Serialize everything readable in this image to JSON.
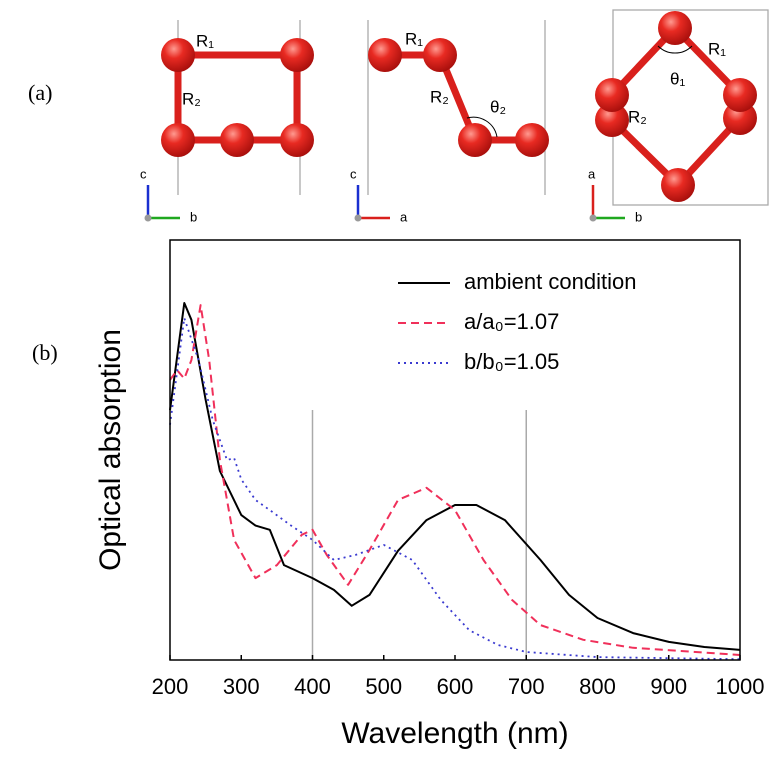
{
  "figure": {
    "panel_labels": [
      "(a)",
      "(b)"
    ],
    "diagram_1": {
      "labels": [
        "R₁",
        "R₂"
      ],
      "axes": [
        "c",
        "b"
      ]
    },
    "diagram_2": {
      "labels": [
        "R₁",
        "R₂",
        "θ₂"
      ],
      "axes": [
        "c",
        "a"
      ]
    },
    "diagram_3": {
      "labels": [
        "R₁",
        "θ₁",
        "R₂"
      ],
      "axes": [
        "a",
        "b"
      ]
    }
  },
  "chart_data": {
    "type": "line",
    "x_label": "Wavelength (nm)",
    "y_label": "Optical absorption",
    "xlim": [
      200,
      1000
    ],
    "xticks": [
      200,
      300,
      400,
      500,
      600,
      700,
      800,
      900,
      1000
    ],
    "ylim": [
      0,
      1
    ],
    "reference_lines_x": [
      400,
      700
    ],
    "legend": "upper right",
    "series": [
      {
        "name": "ambient condition",
        "color": "#000000",
        "dash": "solid",
        "x": [
          200,
          220,
          230,
          250,
          270,
          300,
          320,
          340,
          360,
          400,
          430,
          455,
          480,
          520,
          560,
          600,
          630,
          670,
          720,
          760,
          800,
          850,
          900,
          950,
          1000
        ],
        "values": [
          0.595,
          0.85,
          0.81,
          0.62,
          0.45,
          0.345,
          0.32,
          0.31,
          0.226,
          0.195,
          0.167,
          0.129,
          0.155,
          0.26,
          0.333,
          0.369,
          0.369,
          0.333,
          0.238,
          0.155,
          0.1,
          0.064,
          0.043,
          0.031,
          0.024
        ]
      },
      {
        "name": "a/a₀=1.07",
        "color": "#f0305a",
        "dash": "dashed",
        "x": [
          200,
          210,
          220,
          230,
          243,
          255,
          270,
          290,
          320,
          350,
          385,
          400,
          420,
          450,
          480,
          520,
          560,
          600,
          640,
          680,
          720,
          780,
          850,
          1000
        ],
        "values": [
          0.667,
          0.69,
          0.67,
          0.714,
          0.845,
          0.714,
          0.476,
          0.286,
          0.195,
          0.226,
          0.298,
          0.31,
          0.25,
          0.179,
          0.262,
          0.381,
          0.41,
          0.357,
          0.238,
          0.143,
          0.083,
          0.048,
          0.029,
          0.012
        ]
      },
      {
        "name": "b/b₀=1.05",
        "color": "#3a3ad0",
        "dash": "dotted",
        "x": [
          200,
          220,
          240,
          260,
          280,
          290,
          300,
          320,
          340,
          370,
          400,
          430,
          460,
          500,
          540,
          580,
          620,
          660,
          700,
          800,
          1000
        ],
        "values": [
          0.56,
          0.814,
          0.714,
          0.571,
          0.476,
          0.481,
          0.43,
          0.381,
          0.357,
          0.32,
          0.286,
          0.238,
          0.25,
          0.274,
          0.238,
          0.143,
          0.071,
          0.036,
          0.019,
          0.007,
          0.002
        ]
      }
    ]
  }
}
